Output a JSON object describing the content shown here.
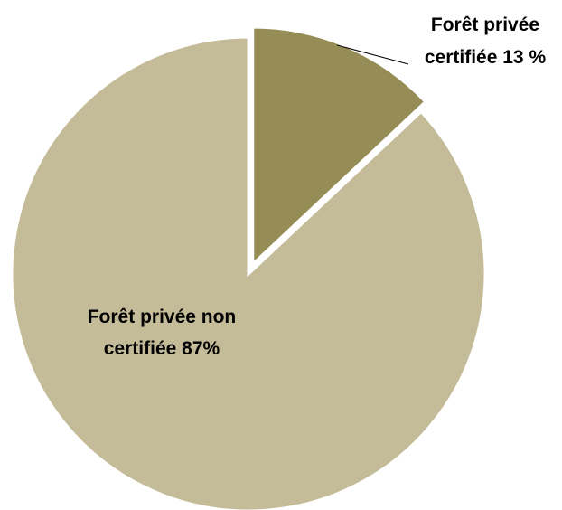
{
  "chart_data": {
    "type": "pie",
    "slices": [
      {
        "name": "Forêt privée certifiée",
        "value": 13,
        "label_lines": [
          "Forêt privée",
          "certifiée 13 %"
        ],
        "color": "#968c56"
      },
      {
        "name": "Forêt privée non certifiée",
        "value": 87,
        "label_lines": [
          "Forêt privée non",
          "certifiée 87%"
        ],
        "color": "#c4bb98"
      }
    ],
    "start_angle_deg": 0,
    "direction": "clockwise",
    "exploded_slice_index": 0,
    "slice_separator_color": "#ffffff",
    "legend": "none"
  }
}
